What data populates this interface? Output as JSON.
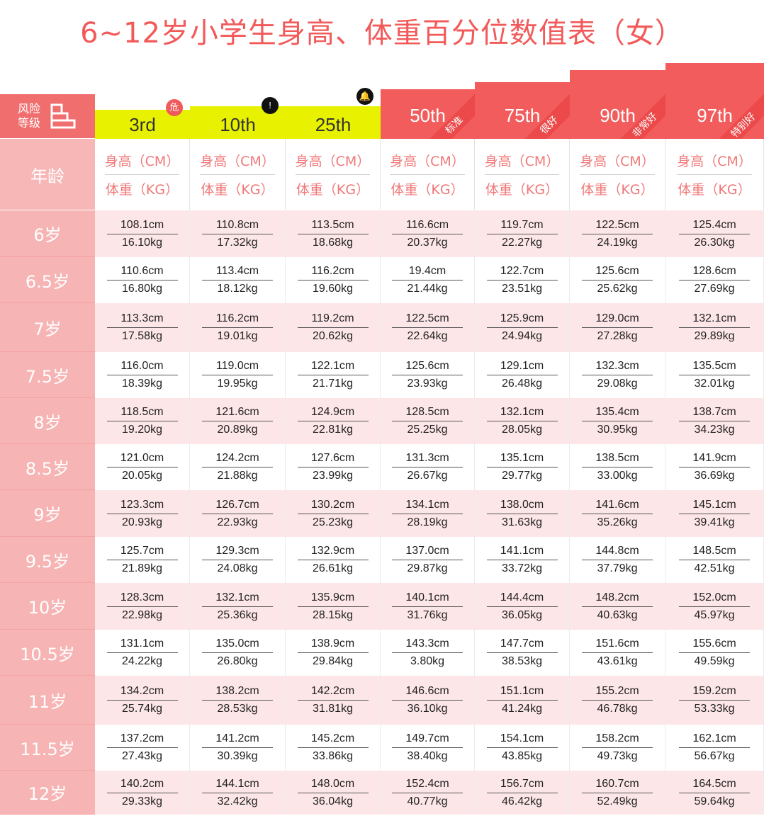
{
  "title": "6~12岁小学生身高、体重百分位数值表（女）",
  "header": {
    "risk_label": "风险\n等级",
    "age_label": "年龄",
    "height_label": "身高（CM）",
    "weight_label": "体重（KG）",
    "columns": [
      {
        "label": "3rd",
        "style": "yellow",
        "badge": "危",
        "badge_color": "#f05a5a"
      },
      {
        "label": "10th",
        "style": "yellow",
        "badge": "!",
        "badge_color": "#111111"
      },
      {
        "label": "25th",
        "style": "yellow",
        "badge": "🔔",
        "badge_color": "#111111"
      },
      {
        "label": "50th",
        "style": "red",
        "tag": "标准"
      },
      {
        "label": "75th",
        "style": "red",
        "tag": "很好"
      },
      {
        "label": "90th",
        "style": "red",
        "tag": "非常好"
      },
      {
        "label": "97th",
        "style": "red",
        "tag": "特别好"
      }
    ]
  },
  "colors": {
    "title": "#f25a5a",
    "yellow": "#e8f200",
    "red": "#f25c5c",
    "age_bg": "#f7b4b4",
    "pink_row": "#fde6e8"
  },
  "rows": [
    {
      "age": "6岁",
      "cells": [
        [
          "108.1cm",
          "16.10kg"
        ],
        [
          "110.8cm",
          "17.32kg"
        ],
        [
          "113.5cm",
          "18.68kg"
        ],
        [
          "116.6cm",
          "20.37kg"
        ],
        [
          "119.7cm",
          "22.27kg"
        ],
        [
          "122.5cm",
          "24.19kg"
        ],
        [
          "125.4cm",
          "26.30kg"
        ]
      ]
    },
    {
      "age": "6.5岁",
      "cells": [
        [
          "110.6cm",
          "16.80kg"
        ],
        [
          "113.4cm",
          "18.12kg"
        ],
        [
          "116.2cm",
          "19.60kg"
        ],
        [
          "19.4cm",
          "21.44kg"
        ],
        [
          "122.7cm",
          "23.51kg"
        ],
        [
          "125.6cm",
          "25.62kg"
        ],
        [
          "128.6cm",
          "27.69kg"
        ]
      ]
    },
    {
      "age": "7岁",
      "cells": [
        [
          "113.3cm",
          "17.58kg"
        ],
        [
          "116.2cm",
          "19.01kg"
        ],
        [
          "119.2cm",
          "20.62kg"
        ],
        [
          "122.5cm",
          "22.64kg"
        ],
        [
          "125.9cm",
          "24.94kg"
        ],
        [
          "129.0cm",
          "27.28kg"
        ],
        [
          "132.1cm",
          "29.89kg"
        ]
      ]
    },
    {
      "age": "7.5岁",
      "cells": [
        [
          "116.0cm",
          "18.39kg"
        ],
        [
          "119.0cm",
          "19.95kg"
        ],
        [
          "122.1cm",
          "21.71kg"
        ],
        [
          "125.6cm",
          "23.93kg"
        ],
        [
          "129.1cm",
          "26.48kg"
        ],
        [
          "132.3cm",
          "29.08kg"
        ],
        [
          "135.5cm",
          "32.01kg"
        ]
      ]
    },
    {
      "age": "8岁",
      "cells": [
        [
          "118.5cm",
          "19.20kg"
        ],
        [
          "121.6cm",
          "20.89kg"
        ],
        [
          "124.9cm",
          "22.81kg"
        ],
        [
          "128.5cm",
          "25.25kg"
        ],
        [
          "132.1cm",
          "28.05kg"
        ],
        [
          "135.4cm",
          "30.95kg"
        ],
        [
          "138.7cm",
          "34.23kg"
        ]
      ]
    },
    {
      "age": "8.5岁",
      "cells": [
        [
          "121.0cm",
          "20.05kg"
        ],
        [
          "124.2cm",
          "21.88kg"
        ],
        [
          "127.6cm",
          "23.99kg"
        ],
        [
          "131.3cm",
          "26.67kg"
        ],
        [
          "135.1cm",
          "29.77kg"
        ],
        [
          "138.5cm",
          "33.00kg"
        ],
        [
          "141.9cm",
          "36.69kg"
        ]
      ]
    },
    {
      "age": "9岁",
      "cells": [
        [
          "123.3cm",
          "20.93kg"
        ],
        [
          "126.7cm",
          "22.93kg"
        ],
        [
          "130.2cm",
          "25.23kg"
        ],
        [
          "134.1cm",
          "28.19kg"
        ],
        [
          "138.0cm",
          "31.63kg"
        ],
        [
          "141.6cm",
          "35.26kg"
        ],
        [
          "145.1cm",
          "39.41kg"
        ]
      ]
    },
    {
      "age": "9.5岁",
      "cells": [
        [
          "125.7cm",
          "21.89kg"
        ],
        [
          "129.3cm",
          "24.08kg"
        ],
        [
          "132.9cm",
          "26.61kg"
        ],
        [
          "137.0cm",
          "29.87kg"
        ],
        [
          "141.1cm",
          "33.72kg"
        ],
        [
          "144.8cm",
          "37.79kg"
        ],
        [
          "148.5cm",
          "42.51kg"
        ]
      ]
    },
    {
      "age": "10岁",
      "cells": [
        [
          "128.3cm",
          "22.98kg"
        ],
        [
          "132.1cm",
          "25.36kg"
        ],
        [
          "135.9cm",
          "28.15kg"
        ],
        [
          "140.1cm",
          "31.76kg"
        ],
        [
          "144.4cm",
          "36.05kg"
        ],
        [
          "148.2cm",
          "40.63kg"
        ],
        [
          "152.0cm",
          "45.97kg"
        ]
      ]
    },
    {
      "age": "10.5岁",
      "cells": [
        [
          "131.1cm",
          "24.22kg"
        ],
        [
          "135.0cm",
          "26.80kg"
        ],
        [
          "138.9cm",
          "29.84kg"
        ],
        [
          "143.3cm",
          "3.80kg"
        ],
        [
          "147.7cm",
          "38.53kg"
        ],
        [
          "151.6cm",
          "43.61kg"
        ],
        [
          "155.6cm",
          "49.59kg"
        ]
      ]
    },
    {
      "age": "11岁",
      "cells": [
        [
          "134.2cm",
          "25.74kg"
        ],
        [
          "138.2cm",
          "28.53kg"
        ],
        [
          "142.2cm",
          "31.81kg"
        ],
        [
          "146.6cm",
          "36.10kg"
        ],
        [
          "151.1cm",
          "41.24kg"
        ],
        [
          "155.2cm",
          "46.78kg"
        ],
        [
          "159.2cm",
          "53.33kg"
        ]
      ]
    },
    {
      "age": "11.5岁",
      "cells": [
        [
          "137.2cm",
          "27.43kg"
        ],
        [
          "141.2cm",
          "30.39kg"
        ],
        [
          "145.2cm",
          "33.86kg"
        ],
        [
          "149.7cm",
          "38.40kg"
        ],
        [
          "154.1cm",
          "43.85kg"
        ],
        [
          "158.2cm",
          "49.73kg"
        ],
        [
          "162.1cm",
          "56.67kg"
        ]
      ]
    },
    {
      "age": "12岁",
      "cells": [
        [
          "140.2cm",
          "29.33kg"
        ],
        [
          "144.1cm",
          "32.42kg"
        ],
        [
          "148.0cm",
          "36.04kg"
        ],
        [
          "152.4cm",
          "40.77kg"
        ],
        [
          "156.7cm",
          "46.42kg"
        ],
        [
          "160.7cm",
          "52.49kg"
        ],
        [
          "164.5cm",
          "59.64kg"
        ]
      ]
    }
  ]
}
